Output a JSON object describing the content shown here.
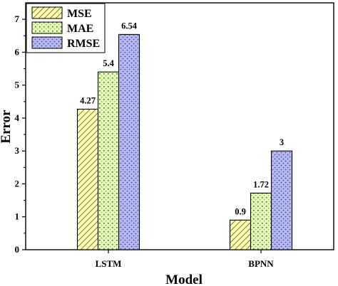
{
  "chart_data": {
    "type": "bar",
    "title": "",
    "xlabel": "Model",
    "ylabel": "Error",
    "categories": [
      "LSTM",
      "BPNN"
    ],
    "series": [
      {
        "name": "MSE",
        "values": [
          4.27,
          0.9
        ],
        "data_labels": [
          "4.27",
          "0.9"
        ],
        "color": "#fffbb0",
        "pattern": "hatch-diagonal"
      },
      {
        "name": "MAE",
        "values": [
          5.4,
          1.72
        ],
        "data_labels": [
          "5.4",
          "1.72"
        ],
        "color": "#e2fbb8",
        "pattern": "grid-dots"
      },
      {
        "name": "RMSE",
        "values": [
          6.54,
          3
        ],
        "data_labels": [
          "6.54",
          "3"
        ],
        "color": "#b4b8f0",
        "pattern": "dots"
      }
    ],
    "ylim": [
      0,
      7.5
    ],
    "yticks": [
      "0",
      "1",
      "2",
      "3",
      "4",
      "5",
      "6",
      "7"
    ],
    "legend_position": "top-left",
    "grid": false
  }
}
